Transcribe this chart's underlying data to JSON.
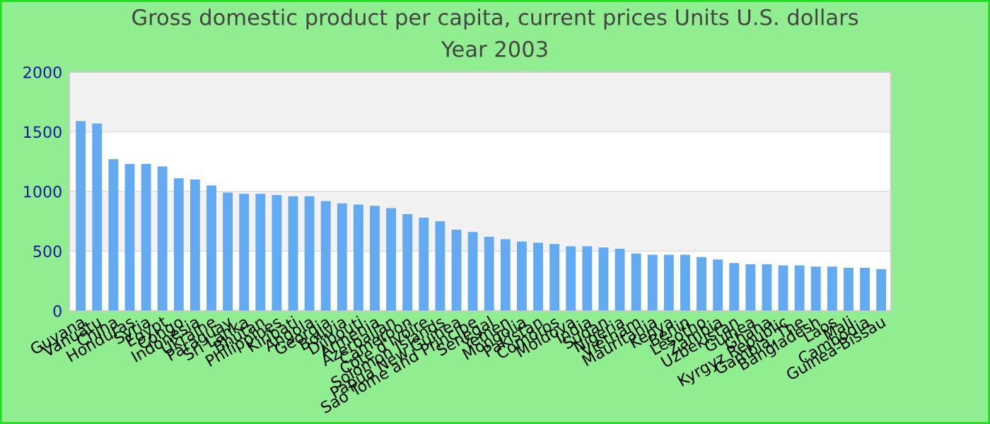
{
  "chart_data": {
    "type": "bar",
    "title": "Gross domestic product per capita, current prices Units U.S. dollars",
    "subtitle": "Year 2003",
    "categories": [
      "Guyana",
      "Vanuatu",
      "China",
      "Honduras",
      "Syria",
      "Egypt",
      "Congo",
      "Indonesia",
      "Ukraine",
      "Paraguay",
      "Sri Lanka",
      "Bhutan",
      "Philippines",
      "Kiribati",
      "Angola",
      "Georgia",
      "Bolivia",
      "Djibouti",
      "Armenia",
      "Azerbaijan",
      "Cameroon",
      "Cote d'Ivoire",
      "Solomon Islands",
      "Papua New Guinea",
      "Sao Tome and Principe",
      "Senegal",
      "Yemen",
      "Mongolia",
      "Pakistan",
      "Comoros",
      "Moldova",
      "India",
      "Sudan",
      "Nigeria",
      "Vietnam",
      "Mauritania",
      "Kenya",
      "Benin",
      "Lesotho",
      "Zambia",
      "Uzbekistan",
      "Guinea",
      "Ghana",
      "Kyrgyz Republic",
      "Gambia, The",
      "Bangladesh",
      "Laos",
      "Mali",
      "Cambodia",
      "Guinea-Bissau"
    ],
    "values": [
      1590,
      1570,
      1270,
      1230,
      1230,
      1210,
      1110,
      1100,
      1050,
      990,
      980,
      980,
      970,
      960,
      960,
      920,
      900,
      890,
      880,
      860,
      810,
      780,
      750,
      680,
      660,
      620,
      600,
      580,
      570,
      560,
      540,
      540,
      530,
      520,
      480,
      470,
      470,
      470,
      450,
      430,
      400,
      390,
      390,
      380,
      380,
      370,
      370,
      360,
      360,
      350
    ],
    "color": "#63aaf0",
    "ylim": [
      0,
      2000
    ],
    "yticks": [
      0,
      500,
      1000,
      1500,
      2000
    ],
    "grid": "y"
  }
}
